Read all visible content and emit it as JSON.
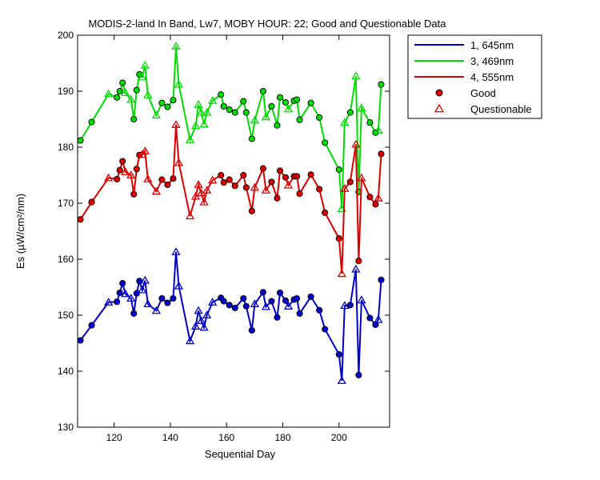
{
  "chart_data": {
    "type": "line",
    "title": "MODIS-2-land In Band,  Lw7, MOBY HOUR: 22;  Good and Questionable Data",
    "xlabel": "Sequential Day",
    "ylabel": "Es (µW/cm²/nm)",
    "xlim": [
      107,
      218
    ],
    "ylim": [
      130,
      200
    ],
    "xticks": [
      120,
      140,
      160,
      180,
      200
    ],
    "yticks": [
      130,
      140,
      150,
      160,
      170,
      180,
      190,
      200
    ],
    "grid": false,
    "legend_position": "outside top-right",
    "legend": {
      "series_labels": [
        "1, 645nm",
        "3, 469nm",
        "4, 555nm"
      ],
      "good_label": "Good",
      "questionable_label": "Questionable"
    },
    "series": [
      {
        "name": "1, 645nm",
        "color": "#0000cc",
        "points": [
          [
            108,
            145.5,
            "g"
          ],
          [
            112,
            148.2,
            "g"
          ],
          [
            118,
            152.3,
            "q"
          ],
          [
            121,
            152.4,
            "g"
          ],
          [
            122,
            154.0,
            "g"
          ],
          [
            123,
            155.7,
            "g"
          ],
          [
            124,
            153.8,
            "q"
          ],
          [
            126,
            153.0,
            "q"
          ],
          [
            127,
            150.3,
            "g"
          ],
          [
            128,
            153.9,
            "g"
          ],
          [
            129,
            156.1,
            "g"
          ],
          [
            130,
            154.5,
            "q"
          ],
          [
            131,
            156.2,
            "q"
          ],
          [
            132,
            152.0,
            "q"
          ],
          [
            135,
            150.8,
            "q"
          ],
          [
            137,
            153.0,
            "g"
          ],
          [
            139,
            152.2,
            "g"
          ],
          [
            141,
            153.0,
            "g"
          ],
          [
            142,
            161.3,
            "q"
          ],
          [
            143,
            155.2,
            "q"
          ],
          [
            147,
            145.4,
            "q"
          ],
          [
            149,
            148.0,
            "q"
          ],
          [
            150,
            150.8,
            "q"
          ],
          [
            151,
            149.0,
            "q"
          ],
          [
            152,
            147.8,
            "q"
          ],
          [
            153,
            150.0,
            "q"
          ],
          [
            155,
            152.3,
            "q"
          ],
          [
            158,
            153.1,
            "g"
          ],
          [
            159,
            152.5,
            "g"
          ],
          [
            161,
            151.8,
            "g"
          ],
          [
            163,
            151.3,
            "g"
          ],
          [
            166,
            153.0,
            "g"
          ],
          [
            167,
            151.6,
            "g"
          ],
          [
            169,
            147.3,
            "g"
          ],
          [
            170,
            152.0,
            "q"
          ],
          [
            173,
            154.1,
            "g"
          ],
          [
            174,
            151.5,
            "q"
          ],
          [
            176,
            152.5,
            "g"
          ],
          [
            178,
            149.6,
            "g"
          ],
          [
            179,
            154.0,
            "g"
          ],
          [
            181,
            152.6,
            "g"
          ],
          [
            182,
            151.6,
            "q"
          ],
          [
            184,
            152.8,
            "g"
          ],
          [
            185,
            153.0,
            "g"
          ],
          [
            186,
            150.3,
            "g"
          ],
          [
            190,
            153.3,
            "g"
          ],
          [
            193,
            150.9,
            "g"
          ],
          [
            195,
            147.5,
            "g"
          ],
          [
            200,
            143.0,
            "g"
          ],
          [
            201,
            138.3,
            "q"
          ],
          [
            202,
            151.7,
            "q"
          ],
          [
            204,
            151.8,
            "g"
          ],
          [
            206,
            158.2,
            "q"
          ],
          [
            207,
            139.3,
            "g"
          ],
          [
            208,
            152.7,
            "q"
          ],
          [
            211,
            149.5,
            "g"
          ],
          [
            213,
            148.3,
            "g"
          ],
          [
            214,
            149.2,
            "q"
          ],
          [
            215,
            156.3,
            "g"
          ]
        ]
      },
      {
        "name": "3, 469nm",
        "color": "#00dd00",
        "points": [
          [
            108,
            181.2,
            "g"
          ],
          [
            112,
            184.5,
            "g"
          ],
          [
            118,
            189.5,
            "q"
          ],
          [
            121,
            188.9,
            "g"
          ],
          [
            122,
            190.0,
            "g"
          ],
          [
            123,
            191.5,
            "g"
          ],
          [
            124,
            189.7,
            "q"
          ],
          [
            126,
            188.5,
            "q"
          ],
          [
            127,
            185.0,
            "g"
          ],
          [
            128,
            190.2,
            "g"
          ],
          [
            129,
            193.0,
            "g"
          ],
          [
            130,
            192.5,
            "q"
          ],
          [
            131,
            194.6,
            "q"
          ],
          [
            132,
            189.3,
            "q"
          ],
          [
            135,
            185.7,
            "q"
          ],
          [
            137,
            187.9,
            "g"
          ],
          [
            139,
            187.2,
            "g"
          ],
          [
            141,
            188.4,
            "g"
          ],
          [
            142,
            198.0,
            "q"
          ],
          [
            143,
            191.2,
            "q"
          ],
          [
            147,
            181.3,
            "q"
          ],
          [
            149,
            183.8,
            "q"
          ],
          [
            150,
            187.6,
            "q"
          ],
          [
            151,
            186.2,
            "q"
          ],
          [
            152,
            184.1,
            "q"
          ],
          [
            153,
            186.2,
            "q"
          ],
          [
            155,
            188.3,
            "q"
          ],
          [
            158,
            189.4,
            "g"
          ],
          [
            159,
            187.3,
            "g"
          ],
          [
            161,
            186.7,
            "g"
          ],
          [
            163,
            186.2,
            "g"
          ],
          [
            166,
            188.2,
            "g"
          ],
          [
            167,
            186.2,
            "g"
          ],
          [
            169,
            181.5,
            "g"
          ],
          [
            170,
            184.8,
            "q"
          ],
          [
            173,
            190.0,
            "g"
          ],
          [
            174,
            185.4,
            "q"
          ],
          [
            176,
            187.3,
            "g"
          ],
          [
            178,
            183.9,
            "g"
          ],
          [
            179,
            188.9,
            "g"
          ],
          [
            181,
            188.0,
            "g"
          ],
          [
            182,
            186.8,
            "q"
          ],
          [
            184,
            188.3,
            "g"
          ],
          [
            185,
            188.5,
            "g"
          ],
          [
            186,
            184.9,
            "g"
          ],
          [
            190,
            187.9,
            "g"
          ],
          [
            193,
            185.3,
            "g"
          ],
          [
            195,
            180.8,
            "g"
          ],
          [
            200,
            176.0,
            "g"
          ],
          [
            201,
            169.0,
            "q"
          ],
          [
            202,
            184.4,
            "q"
          ],
          [
            204,
            186.2,
            "g"
          ],
          [
            206,
            192.7,
            "q"
          ],
          [
            207,
            172.0,
            "g"
          ],
          [
            208,
            187.0,
            "q"
          ],
          [
            211,
            184.4,
            "g"
          ],
          [
            213,
            182.6,
            "g"
          ],
          [
            214,
            183.0,
            "q"
          ],
          [
            215,
            191.2,
            "g"
          ]
        ]
      },
      {
        "name": "4, 555nm",
        "color": "#dd0000",
        "points": [
          [
            108,
            167.1,
            "g"
          ],
          [
            112,
            170.2,
            "g"
          ],
          [
            118,
            174.5,
            "q"
          ],
          [
            121,
            174.3,
            "g"
          ],
          [
            122,
            175.9,
            "g"
          ],
          [
            123,
            177.5,
            "g"
          ],
          [
            124,
            175.6,
            "q"
          ],
          [
            126,
            175.0,
            "q"
          ],
          [
            127,
            171.6,
            "g"
          ],
          [
            128,
            176.1,
            "g"
          ],
          [
            129,
            178.6,
            "g"
          ],
          [
            130,
            178.7,
            "q"
          ],
          [
            131,
            179.3,
            "q"
          ],
          [
            132,
            174.3,
            "q"
          ],
          [
            135,
            172.1,
            "q"
          ],
          [
            137,
            174.2,
            "g"
          ],
          [
            139,
            173.3,
            "g"
          ],
          [
            141,
            174.4,
            "g"
          ],
          [
            142,
            184.0,
            "q"
          ],
          [
            143,
            177.2,
            "q"
          ],
          [
            147,
            167.7,
            "q"
          ],
          [
            149,
            171.2,
            "q"
          ],
          [
            150,
            173.3,
            "q"
          ],
          [
            151,
            171.8,
            "q"
          ],
          [
            152,
            170.2,
            "q"
          ],
          [
            153,
            172.3,
            "q"
          ],
          [
            155,
            174.1,
            "q"
          ],
          [
            158,
            175.0,
            "g"
          ],
          [
            159,
            173.7,
            "g"
          ],
          [
            161,
            174.2,
            "g"
          ],
          [
            163,
            173.1,
            "g"
          ],
          [
            166,
            175.0,
            "g"
          ],
          [
            167,
            172.8,
            "g"
          ],
          [
            169,
            168.6,
            "g"
          ],
          [
            170,
            172.8,
            "q"
          ],
          [
            173,
            176.2,
            "g"
          ],
          [
            174,
            172.3,
            "q"
          ],
          [
            176,
            173.8,
            "g"
          ],
          [
            178,
            170.9,
            "g"
          ],
          [
            179,
            175.8,
            "g"
          ],
          [
            181,
            174.6,
            "g"
          ],
          [
            182,
            173.2,
            "q"
          ],
          [
            184,
            174.8,
            "g"
          ],
          [
            185,
            174.8,
            "g"
          ],
          [
            186,
            171.7,
            "g"
          ],
          [
            190,
            175.1,
            "g"
          ],
          [
            193,
            172.5,
            "g"
          ],
          [
            195,
            168.3,
            "g"
          ],
          [
            200,
            163.7,
            "g"
          ],
          [
            201,
            157.4,
            "q"
          ],
          [
            202,
            172.6,
            "q"
          ],
          [
            204,
            173.8,
            "g"
          ],
          [
            206,
            180.5,
            "q"
          ],
          [
            207,
            159.7,
            "g"
          ],
          [
            208,
            174.5,
            "q"
          ],
          [
            211,
            171.1,
            "g"
          ],
          [
            213,
            169.8,
            "g"
          ],
          [
            214,
            170.9,
            "q"
          ],
          [
            215,
            178.8,
            "g"
          ]
        ]
      }
    ]
  }
}
